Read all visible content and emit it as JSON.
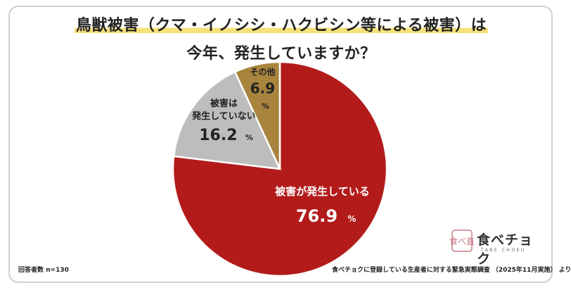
{
  "title": {
    "line1": "鳥獣被害（クマ・イノシシ・ハクビシン等による被害）は",
    "line2": "今年、発生していますか？"
  },
  "chart_data": {
    "type": "pie",
    "slices": [
      {
        "label": "被害が発生している",
        "value": 76.9,
        "display": "76.9",
        "unit": "%",
        "color": "#b31b1b"
      },
      {
        "label": "被害は発生していない",
        "label_lines": [
          "被害は",
          "発生していない"
        ],
        "value": 16.2,
        "display": "16.2",
        "unit": "%",
        "color": "#bdbdbd"
      },
      {
        "label": "その他",
        "value": 6.9,
        "display": "6.9",
        "unit": "%",
        "color": "#a8843f"
      }
    ]
  },
  "footer": {
    "sample": "回答者数 n=130",
    "source": "食べチョクに登録している生産者に対する緊急実態調査 （2025年11月実施） より"
  },
  "logo": {
    "main": "食べチョク",
    "sub": "TABE CHOKU",
    "stamp": "食べ直"
  }
}
